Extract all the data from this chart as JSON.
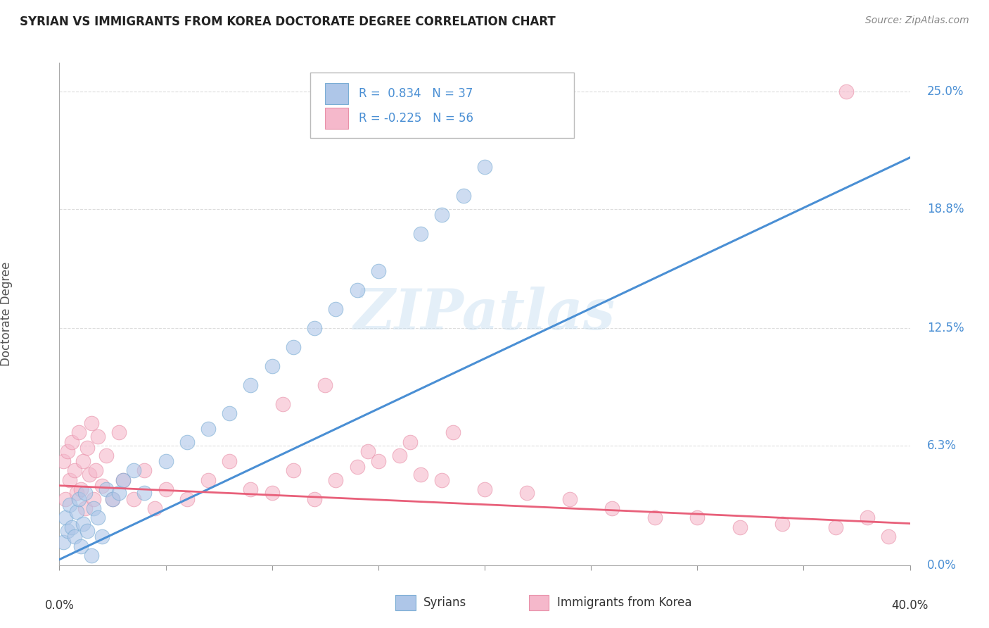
{
  "title": "SYRIAN VS IMMIGRANTS FROM KOREA DOCTORATE DEGREE CORRELATION CHART",
  "source": "Source: ZipAtlas.com",
  "ylabel": "Doctorate Degree",
  "y_tick_vals": [
    0.0,
    6.3,
    12.5,
    18.8,
    25.0
  ],
  "y_tick_labels": [
    "0.0%",
    "6.3%",
    "12.5%",
    "18.8%",
    "25.0%"
  ],
  "xmin": 0.0,
  "xmax": 40.0,
  "ymin": 0.0,
  "ymax": 26.5,
  "legend_syrians": "Syrians",
  "legend_korea": "Immigrants from Korea",
  "syrians_R": "0.834",
  "syrians_N": "37",
  "korea_R": "-0.225",
  "korea_N": "56",
  "blue_fill": "#aec6e8",
  "blue_edge": "#7aadd4",
  "pink_fill": "#f5b8cb",
  "pink_edge": "#e890a8",
  "blue_line_color": "#4a8fd4",
  "pink_line_color": "#e8607a",
  "label_color": "#4a8fd4",
  "title_color": "#222222",
  "source_color": "#888888",
  "ylabel_color": "#555555",
  "grid_color": "#dddddd",
  "watermark_color": "#c5ddf0",
  "blue_line_x0": 0.0,
  "blue_line_y0": 0.3,
  "blue_line_x1": 40.0,
  "blue_line_y1": 21.5,
  "pink_line_x0": 0.0,
  "pink_line_y0": 4.2,
  "pink_line_x1": 40.0,
  "pink_line_y1": 2.2,
  "syrians_x": [
    0.2,
    0.3,
    0.4,
    0.5,
    0.6,
    0.7,
    0.8,
    0.9,
    1.0,
    1.1,
    1.2,
    1.3,
    1.5,
    1.6,
    1.8,
    2.0,
    2.2,
    2.5,
    2.8,
    3.0,
    3.5,
    4.0,
    5.0,
    6.0,
    7.0,
    8.0,
    9.0,
    10.0,
    11.0,
    12.0,
    13.0,
    14.0,
    15.0,
    17.0,
    18.0,
    19.0,
    20.0
  ],
  "syrians_y": [
    1.2,
    2.5,
    1.8,
    3.2,
    2.0,
    1.5,
    2.8,
    3.5,
    1.0,
    2.2,
    3.8,
    1.8,
    0.5,
    3.0,
    2.5,
    1.5,
    4.0,
    3.5,
    3.8,
    4.5,
    5.0,
    3.8,
    5.5,
    6.5,
    7.2,
    8.0,
    9.5,
    10.5,
    11.5,
    12.5,
    13.5,
    14.5,
    15.5,
    17.5,
    18.5,
    19.5,
    21.0
  ],
  "korea_x": [
    0.2,
    0.3,
    0.4,
    0.5,
    0.6,
    0.7,
    0.8,
    0.9,
    1.0,
    1.1,
    1.2,
    1.3,
    1.4,
    1.5,
    1.6,
    1.7,
    1.8,
    2.0,
    2.2,
    2.5,
    2.8,
    3.0,
    3.5,
    4.0,
    4.5,
    5.0,
    6.0,
    7.0,
    8.0,
    9.0,
    10.0,
    11.0,
    12.0,
    13.0,
    14.0,
    15.0,
    16.0,
    17.0,
    18.0,
    20.0,
    22.0,
    24.0,
    26.0,
    28.0,
    30.0,
    32.0,
    34.0,
    36.5,
    38.0,
    39.0,
    10.5,
    12.5,
    14.5,
    16.5,
    18.5,
    37.0
  ],
  "korea_y": [
    5.5,
    3.5,
    6.0,
    4.5,
    6.5,
    5.0,
    3.8,
    7.0,
    4.0,
    5.5,
    3.0,
    6.2,
    4.8,
    7.5,
    3.5,
    5.0,
    6.8,
    4.2,
    5.8,
    3.5,
    7.0,
    4.5,
    3.5,
    5.0,
    3.0,
    4.0,
    3.5,
    4.5,
    5.5,
    4.0,
    3.8,
    5.0,
    3.5,
    4.5,
    5.2,
    5.5,
    5.8,
    4.8,
    4.5,
    4.0,
    3.8,
    3.5,
    3.0,
    2.5,
    2.5,
    2.0,
    2.2,
    2.0,
    2.5,
    1.5,
    8.5,
    9.5,
    6.0,
    6.5,
    7.0,
    25.0
  ]
}
